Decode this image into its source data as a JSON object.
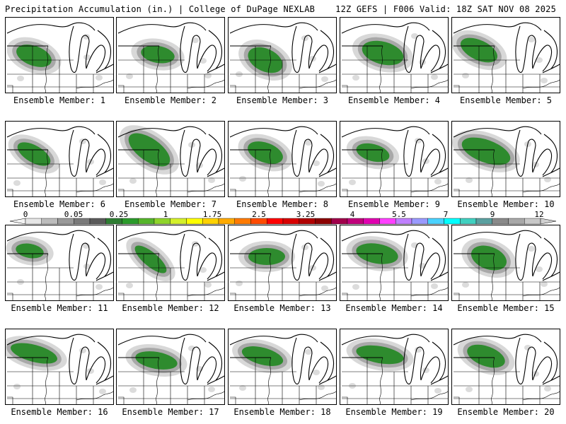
{
  "header": {
    "title_left": "Precipitation Accumulation (in.) | College of DuPage NEXLAB",
    "title_right": "12Z GEFS | F006 Valid: 18Z SAT NOV 08 2025"
  },
  "colorbar": {
    "tick_labels": [
      "0",
      "0.05",
      "0.25",
      "1",
      "1.75",
      "2.5",
      "3.25",
      "4",
      "5.5",
      "7",
      "9",
      "12"
    ],
    "colors": [
      "#e6e6e6",
      "#bdbdbd",
      "#9a9a9a",
      "#7a7a7a",
      "#5a5a5a",
      "#2e7d32",
      "#2a9a2a",
      "#55b52a",
      "#8fd42a",
      "#d4f02a",
      "#ffff00",
      "#ffd200",
      "#ffaa00",
      "#ff7a00",
      "#ff4a00",
      "#ff0000",
      "#d80000",
      "#b00000",
      "#8b0000",
      "#a0004a",
      "#c0007a",
      "#e000b0",
      "#ff40ff",
      "#c080ff",
      "#9a9aff",
      "#4ad2ff",
      "#00ffff",
      "#40d0c0",
      "#5aa0a0",
      "#8a8a8a",
      "#a8a8a8",
      "#c8c8c8"
    ]
  },
  "members": [
    {
      "label": "Ensemble Member: 1"
    },
    {
      "label": "Ensemble Member: 2"
    },
    {
      "label": "Ensemble Member: 3"
    },
    {
      "label": "Ensemble Member: 4"
    },
    {
      "label": "Ensemble Member: 5"
    },
    {
      "label": "Ensemble Member: 6"
    },
    {
      "label": "Ensemble Member: 7"
    },
    {
      "label": "Ensemble Member: 8"
    },
    {
      "label": "Ensemble Member: 9"
    },
    {
      "label": "Ensemble Member: 10"
    },
    {
      "label": "Ensemble Member: 11"
    },
    {
      "label": "Ensemble Member: 12"
    },
    {
      "label": "Ensemble Member: 13"
    },
    {
      "label": "Ensemble Member: 14"
    },
    {
      "label": "Ensemble Member: 15"
    },
    {
      "label": "Ensemble Member: 16"
    },
    {
      "label": "Ensemble Member: 17"
    },
    {
      "label": "Ensemble Member: 18"
    },
    {
      "label": "Ensemble Member: 19"
    },
    {
      "label": "Ensemble Member: 20"
    }
  ]
}
